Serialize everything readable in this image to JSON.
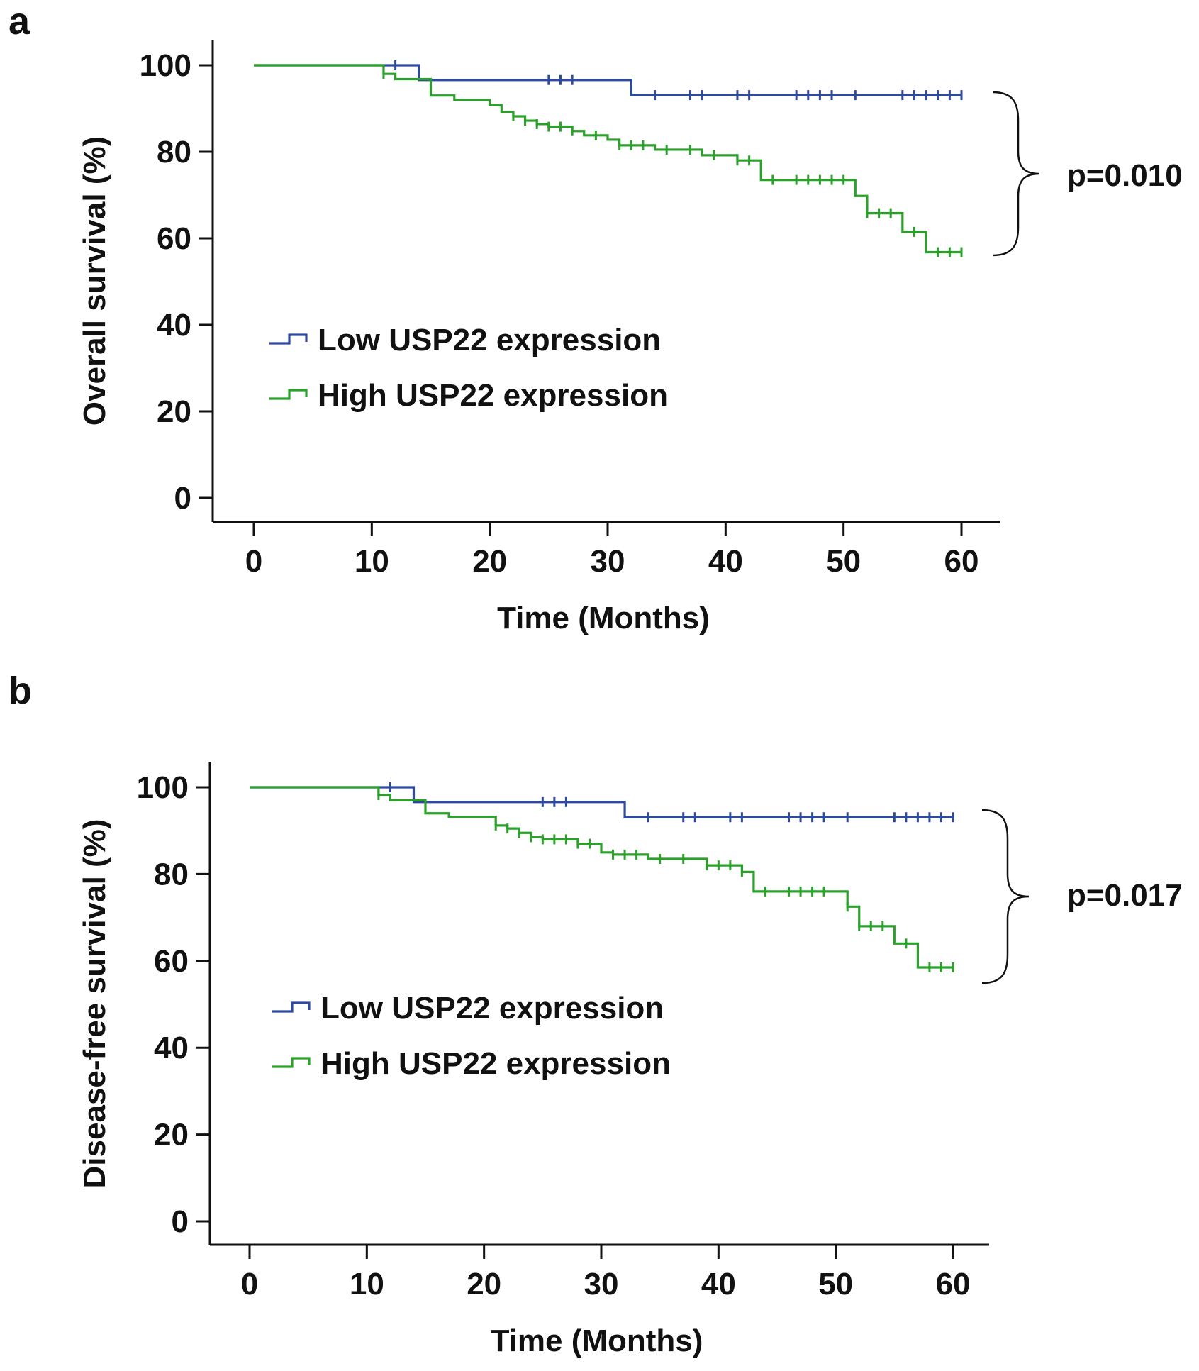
{
  "colors": {
    "low": "#2e4a9e",
    "high": "#2ba02b",
    "axis": "#111111"
  },
  "chart_data": [
    {
      "panel_label": "a",
      "type": "line",
      "subtype": "kaplan-meier",
      "xlabel": "Time (Months)",
      "ylabel": "Overall survival (%)",
      "xlim": [
        0,
        60
      ],
      "ylim": [
        0,
        100
      ],
      "x_ticks": [
        0,
        10,
        20,
        30,
        40,
        50,
        60
      ],
      "y_ticks": [
        0,
        20,
        40,
        60,
        80,
        100
      ],
      "grid": false,
      "legend_position": "middle-left",
      "p_value": "p=0.010",
      "series": [
        {
          "name": "Low USP22 expression",
          "color_key": "low",
          "steps": [
            [
              0,
              100
            ],
            [
              14,
              96.6
            ],
            [
              32,
              93.1
            ],
            [
              60,
              93.1
            ]
          ],
          "censored": [
            [
              12,
              100
            ],
            [
              25,
              96.6
            ],
            [
              26,
              96.6
            ],
            [
              27,
              96.6
            ],
            [
              34,
              93.1
            ],
            [
              37,
              93.1
            ],
            [
              38,
              93.1
            ],
            [
              41,
              93.1
            ],
            [
              42,
              93.1
            ],
            [
              46,
              93.1
            ],
            [
              47,
              93.1
            ],
            [
              48,
              93.1
            ],
            [
              49,
              93.1
            ],
            [
              51,
              93.1
            ],
            [
              55,
              93.1
            ],
            [
              56,
              93.1
            ],
            [
              57,
              93.1
            ],
            [
              58,
              93.1
            ],
            [
              59,
              93.1
            ],
            [
              60,
              93.1
            ]
          ]
        },
        {
          "name": "High USP22 expression",
          "color_key": "high",
          "steps": [
            [
              0,
              100
            ],
            [
              11,
              98
            ],
            [
              12,
              96.8
            ],
            [
              15,
              93
            ],
            [
              17,
              92
            ],
            [
              20,
              90.8
            ],
            [
              21,
              89.2
            ],
            [
              22,
              88.2
            ],
            [
              23,
              87.2
            ],
            [
              24,
              86.4
            ],
            [
              25,
              85.8
            ],
            [
              27,
              84.8
            ],
            [
              28,
              83.8
            ],
            [
              30,
              82.8
            ],
            [
              31,
              81.5
            ],
            [
              34,
              80.5
            ],
            [
              38,
              79.2
            ],
            [
              41,
              78
            ],
            [
              43,
              73.5
            ],
            [
              51,
              69.8
            ],
            [
              52,
              65.8
            ],
            [
              55,
              61.5
            ],
            [
              57,
              56.8
            ],
            [
              60,
              56.8
            ]
          ],
          "censored": [
            [
              11,
              98
            ],
            [
              22,
              88.2
            ],
            [
              23,
              87.2
            ],
            [
              24,
              86.4
            ],
            [
              25,
              85.8
            ],
            [
              26,
              85.8
            ],
            [
              27,
              84.8
            ],
            [
              29,
              83.8
            ],
            [
              31,
              81.5
            ],
            [
              32,
              81.5
            ],
            [
              33,
              81.5
            ],
            [
              35,
              80.5
            ],
            [
              37,
              80.5
            ],
            [
              39,
              79.2
            ],
            [
              41,
              78
            ],
            [
              42,
              78
            ],
            [
              44,
              73.5
            ],
            [
              46,
              73.5
            ],
            [
              47,
              73.5
            ],
            [
              48,
              73.5
            ],
            [
              49,
              73.5
            ],
            [
              50,
              73.5
            ],
            [
              52,
              65.8
            ],
            [
              53,
              65.8
            ],
            [
              54,
              65.8
            ],
            [
              56,
              61.5
            ],
            [
              58,
              56.8
            ],
            [
              59,
              56.8
            ],
            [
              60,
              56.8
            ]
          ]
        }
      ]
    },
    {
      "panel_label": "b",
      "type": "line",
      "subtype": "kaplan-meier",
      "xlabel": "Time (Months)",
      "ylabel": "Disease-free survival (%)",
      "xlim": [
        0,
        60
      ],
      "ylim": [
        0,
        100
      ],
      "x_ticks": [
        0,
        10,
        20,
        30,
        40,
        50,
        60
      ],
      "y_ticks": [
        0,
        20,
        40,
        60,
        80,
        100
      ],
      "grid": false,
      "legend_position": "middle-left",
      "p_value": "p=0.017",
      "series": [
        {
          "name": "Low USP22 expression",
          "color_key": "low",
          "steps": [
            [
              0,
              100
            ],
            [
              14,
              96.6
            ],
            [
              32,
              93.1
            ],
            [
              60,
              93.1
            ]
          ],
          "censored": [
            [
              12,
              100
            ],
            [
              25,
              96.6
            ],
            [
              26,
              96.6
            ],
            [
              27,
              96.6
            ],
            [
              34,
              93.1
            ],
            [
              37,
              93.1
            ],
            [
              38,
              93.1
            ],
            [
              41,
              93.1
            ],
            [
              42,
              93.1
            ],
            [
              46,
              93.1
            ],
            [
              47,
              93.1
            ],
            [
              48,
              93.1
            ],
            [
              49,
              93.1
            ],
            [
              51,
              93.1
            ],
            [
              55,
              93.1
            ],
            [
              56,
              93.1
            ],
            [
              57,
              93.1
            ],
            [
              58,
              93.1
            ],
            [
              59,
              93.1
            ],
            [
              60,
              93.1
            ]
          ]
        },
        {
          "name": "High USP22 expression",
          "color_key": "high",
          "steps": [
            [
              0,
              100
            ],
            [
              11,
              98.2
            ],
            [
              12,
              97
            ],
            [
              15,
              94
            ],
            [
              17,
              93.2
            ],
            [
              21,
              91.2
            ],
            [
              22,
              90.5
            ],
            [
              23,
              89.5
            ],
            [
              24,
              88.5
            ],
            [
              25,
              88
            ],
            [
              28,
              87
            ],
            [
              30,
              85
            ],
            [
              31,
              84.5
            ],
            [
              34,
              83.5
            ],
            [
              39,
              82
            ],
            [
              42,
              80.5
            ],
            [
              43,
              76
            ],
            [
              51,
              72.5
            ],
            [
              52,
              68
            ],
            [
              55,
              64
            ],
            [
              57,
              58.5
            ],
            [
              60,
              58.5
            ]
          ],
          "censored": [
            [
              11,
              98.2
            ],
            [
              21,
              91.2
            ],
            [
              22,
              90.5
            ],
            [
              23,
              89.5
            ],
            [
              24,
              88.5
            ],
            [
              25,
              88
            ],
            [
              26,
              88
            ],
            [
              27,
              88
            ],
            [
              28,
              87
            ],
            [
              29,
              87
            ],
            [
              31,
              84.5
            ],
            [
              32,
              84.5
            ],
            [
              33,
              84.5
            ],
            [
              35,
              83.5
            ],
            [
              37,
              83.5
            ],
            [
              39,
              82
            ],
            [
              40,
              82
            ],
            [
              41,
              82
            ],
            [
              42,
              80.5
            ],
            [
              44,
              76
            ],
            [
              46,
              76
            ],
            [
              47,
              76
            ],
            [
              48,
              76
            ],
            [
              49,
              76
            ],
            [
              51,
              72.5
            ],
            [
              52,
              68
            ],
            [
              53,
              68
            ],
            [
              54,
              68
            ],
            [
              56,
              64
            ],
            [
              58,
              58.5
            ],
            [
              59,
              58.5
            ],
            [
              60,
              58.5
            ]
          ]
        }
      ]
    }
  ]
}
